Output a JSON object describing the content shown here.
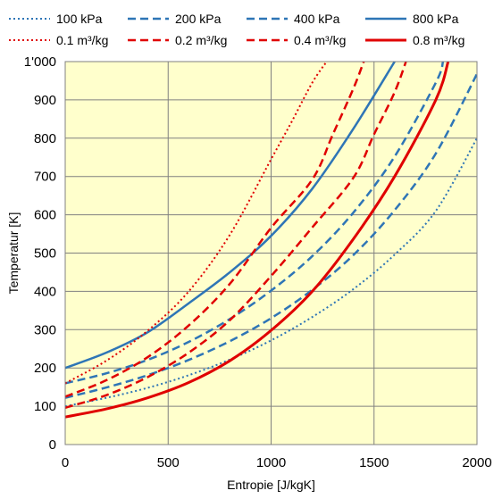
{
  "chart_data": {
    "type": "line",
    "title": "",
    "xlabel": "Entropie [J/kgK]",
    "ylabel": "Temperatur [K]",
    "xlim": [
      0,
      2000
    ],
    "ylim": [
      0,
      1000
    ],
    "x_ticks": [
      0,
      500,
      1000,
      1500,
      2000
    ],
    "x_tick_labels": [
      "0",
      "500",
      "1000",
      "1500",
      "2000"
    ],
    "y_ticks": [
      0,
      100,
      200,
      300,
      400,
      500,
      600,
      700,
      800,
      900,
      1000
    ],
    "y_tick_labels": [
      "0",
      "100",
      "200",
      "300",
      "400",
      "500",
      "600",
      "700",
      "800",
      "900",
      "1'000"
    ],
    "grid": true,
    "plot_background": "#ffffcc",
    "legend_position": "top",
    "series": [
      {
        "name": "100 kPa",
        "color": "#2e75b6",
        "dash": "dotted",
        "width": 2,
        "x": [
          0,
          200,
          400,
          600,
          800,
          1000,
          1200,
          1400,
          1600,
          1800,
          2000
        ],
        "y": [
          100,
          122,
          148,
          181,
          222,
          272,
          333,
          406,
          496,
          610,
          800
        ]
      },
      {
        "name": "200 kPa",
        "color": "#2e75b6",
        "dash": "dashed",
        "width": 2.5,
        "x": [
          0,
          200,
          400,
          600,
          800,
          1000,
          1200,
          1400,
          1600,
          1800,
          2000
        ],
        "y": [
          122,
          149,
          181,
          221,
          270,
          330,
          404,
          495,
          612,
          760,
          968
        ]
      },
      {
        "name": "400 kPa",
        "color": "#2e75b6",
        "dash": "dashed",
        "width": 2.5,
        "x": [
          0,
          200,
          400,
          600,
          800,
          1000,
          1200,
          1400,
          1600,
          1800,
          1835
        ],
        "y": [
          160,
          186,
          221,
          268,
          328,
          402,
          492,
          606,
          752,
          945,
          1000
        ]
      },
      {
        "name": "800 kPa",
        "color": "#2e75b6",
        "dash": "solid",
        "width": 2.5,
        "x": [
          0,
          200,
          400,
          600,
          800,
          1000,
          1200,
          1400,
          1600
        ],
        "y": [
          200,
          240,
          293,
          369,
          450,
          545,
          668,
          825,
          1000
        ]
      },
      {
        "name": "0.1 m³/kg",
        "color": "#e00000",
        "dash": "dotted",
        "width": 2,
        "x": [
          0,
          200,
          400,
          600,
          800,
          1000,
          1100,
          1200,
          1270
        ],
        "y": [
          160,
          219,
          297,
          400,
          548,
          745,
          843,
          945,
          1000
        ]
      },
      {
        "name": "0.2 m³/kg",
        "color": "#e00000",
        "dash": "dashed",
        "width": 2.5,
        "x": [
          0,
          200,
          400,
          600,
          800,
          1000,
          1200,
          1300,
          1400,
          1450
        ],
        "y": [
          125,
          168,
          228,
          311,
          420,
          566,
          692,
          810,
          930,
          1000
        ]
      },
      {
        "name": "0.4 m³/kg",
        "color": "#e00000",
        "dash": "dashed",
        "width": 2.5,
        "x": [
          0,
          200,
          400,
          600,
          800,
          1000,
          1200,
          1400,
          1500,
          1600,
          1655
        ],
        "y": [
          96,
          129,
          176,
          240,
          325,
          440,
          567,
          697,
          810,
          920,
          1000
        ]
      },
      {
        "name": "0.8 m³/kg",
        "color": "#e00000",
        "dash": "solid",
        "width": 3,
        "x": [
          0,
          200,
          400,
          600,
          800,
          1000,
          1200,
          1400,
          1600,
          1800,
          1860
        ],
        "y": [
          72,
          93,
          122,
          162,
          219,
          298,
          400,
          537,
          700,
          900,
          1000
        ]
      }
    ]
  }
}
